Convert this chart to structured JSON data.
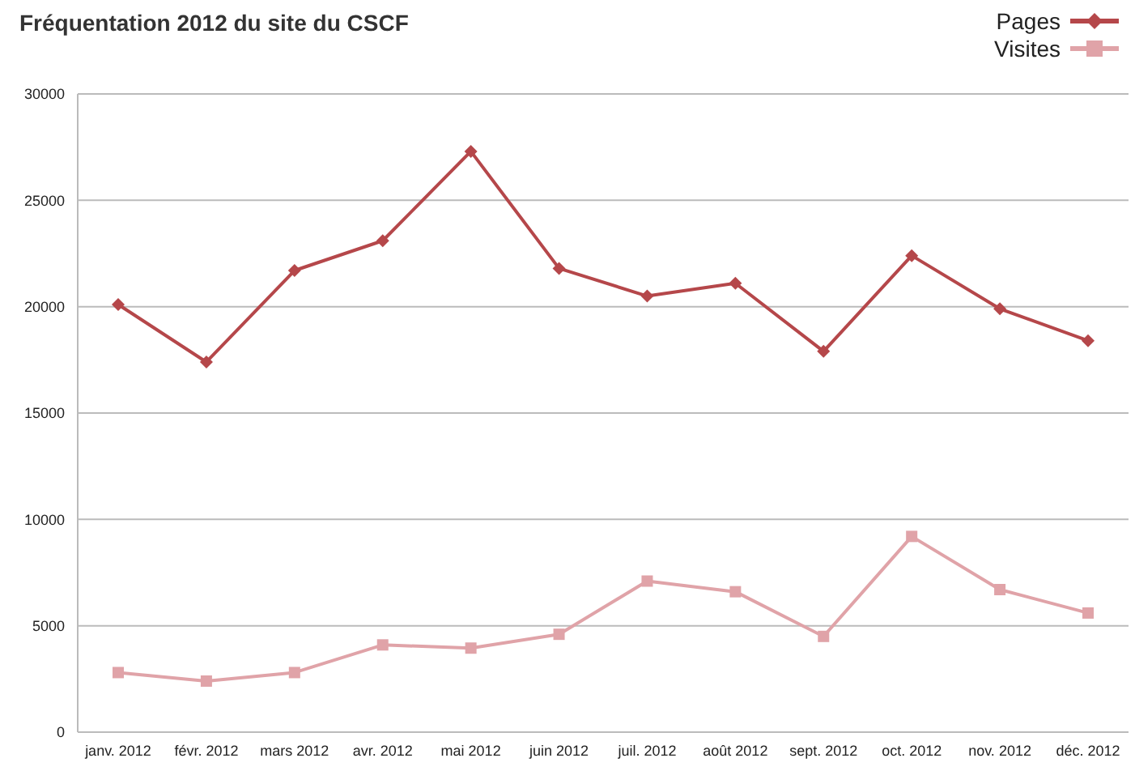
{
  "chart_data": {
    "type": "line",
    "title": "Fréquentation 2012 du site du CSCF",
    "categories": [
      "janv. 2012",
      "févr. 2012",
      "mars 2012",
      "avr. 2012",
      "mai 2012",
      "juin 2012",
      "juil. 2012",
      "août 2012",
      "sept. 2012",
      "oct. 2012",
      "nov. 2012",
      "déc. 2012"
    ],
    "series": [
      {
        "name": "Pages",
        "color": "#b5474a",
        "marker": "diamond",
        "values": [
          20100,
          17400,
          21700,
          23100,
          27300,
          21800,
          20500,
          21100,
          17900,
          22400,
          19900,
          18400
        ]
      },
      {
        "name": "Visites",
        "color": "#e0a3a8",
        "marker": "square",
        "values": [
          2800,
          2400,
          2800,
          4100,
          3950,
          4600,
          7100,
          6600,
          4500,
          9200,
          6700,
          5600
        ]
      }
    ],
    "ylim": [
      0,
      30000
    ],
    "yticks": [
      0,
      5000,
      10000,
      15000,
      20000,
      25000,
      30000
    ],
    "grid": "y",
    "legend": "top right"
  }
}
